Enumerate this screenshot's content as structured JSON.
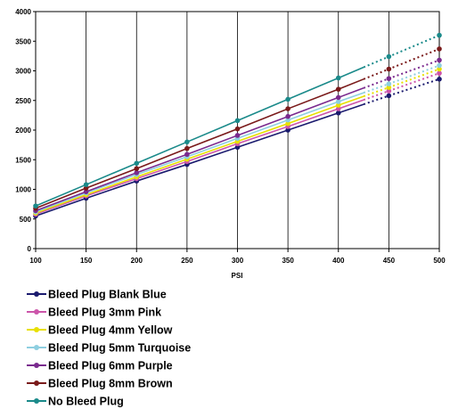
{
  "chart_data": {
    "type": "line",
    "xlabel": "PSI",
    "ylabel": "",
    "title": "",
    "x": [
      100,
      150,
      200,
      250,
      300,
      350,
      400,
      450,
      500
    ],
    "xlim": [
      100,
      500
    ],
    "ylim": [
      0,
      4000
    ],
    "x_ticks": [
      "100",
      "150",
      "200",
      "250",
      "300",
      "350",
      "400",
      "450",
      "500"
    ],
    "y_ticks": [
      "0",
      "500",
      "1000",
      "1500",
      "2000",
      "2500",
      "3000",
      "3500",
      "4000"
    ],
    "grid": "vertical",
    "legend_position": "bottom",
    "solid_until_x": 425,
    "dotted_after_x": 425,
    "series": [
      {
        "name": "Bleed Plug Blank Blue",
        "color": "#1a1a6e",
        "values": [
          550,
          850,
          1140,
          1420,
          1710,
          2000,
          2290,
          2580,
          2860
        ]
      },
      {
        "name": "Bleed Plug 3mm Pink",
        "color": "#cc55aa",
        "values": [
          580,
          890,
          1180,
          1470,
          1770,
          2060,
          2360,
          2660,
          2960
        ]
      },
      {
        "name": "Bleed Plug 4mm Yellow",
        "color": "#e8e000",
        "values": [
          600,
          910,
          1210,
          1510,
          1810,
          2110,
          2420,
          2720,
          3030
        ]
      },
      {
        "name": "Bleed Plug 5mm Turquoise",
        "color": "#8ecfe0",
        "values": [
          620,
          940,
          1250,
          1550,
          1860,
          2170,
          2480,
          2780,
          3090
        ]
      },
      {
        "name": "Bleed Plug 6mm Purple",
        "color": "#7a2a8e",
        "values": [
          640,
          960,
          1280,
          1590,
          1910,
          2230,
          2550,
          2870,
          3180
        ]
      },
      {
        "name": "Bleed Plug 8mm Brown",
        "color": "#7a1a1a",
        "values": [
          680,
          1020,
          1350,
          1690,
          2020,
          2360,
          2690,
          3030,
          3370
        ]
      },
      {
        "name": "No Bleed Plug",
        "color": "#1a8a8a",
        "values": [
          720,
          1080,
          1440,
          1800,
          2160,
          2520,
          2880,
          3240,
          3600
        ]
      }
    ]
  }
}
